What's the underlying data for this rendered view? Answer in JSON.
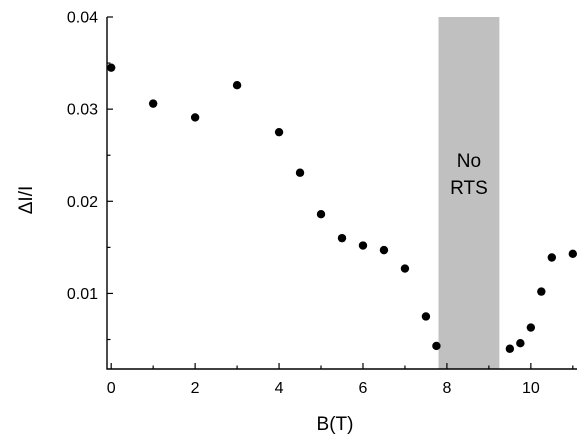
{
  "chart_data": {
    "type": "scatter",
    "title": "",
    "xlabel": "B(T)",
    "ylabel": "ΔI/I",
    "xlim": [
      -0.1,
      11.1
    ],
    "ylim": [
      0.0018,
      0.04
    ],
    "x_ticks": [
      0,
      2,
      4,
      6,
      8,
      10
    ],
    "x_tick_labels": [
      "0",
      "2",
      "4",
      "6",
      "8",
      "10"
    ],
    "x_minor_ticks": [
      1,
      3,
      5,
      7,
      9,
      11
    ],
    "y_ticks": [
      0.01,
      0.02,
      0.03,
      0.04
    ],
    "y_tick_labels": [
      "0.01",
      "0.02",
      "0.03",
      "0.04"
    ],
    "y_minor_ticks": [
      0.005,
      0.015,
      0.025,
      0.035
    ],
    "grid": false,
    "marker_color": "#000000",
    "series": [
      {
        "x": [
          0,
          1,
          2,
          3,
          4,
          4.5,
          5,
          5.5,
          6,
          6.5,
          7,
          7.5,
          7.75,
          9.5,
          9.75,
          10,
          10.25,
          10.5,
          11
        ],
        "y": [
          0.0345,
          0.0306,
          0.0291,
          0.0326,
          0.0275,
          0.0231,
          0.0186,
          0.016,
          0.0152,
          0.0147,
          0.0127,
          0.0075,
          0.0043,
          0.004,
          0.0046,
          0.0063,
          0.0102,
          0.0139,
          0.0143
        ]
      }
    ],
    "shaded_region": {
      "x_start": 7.8,
      "x_end": 9.25,
      "color": "#c0c0c0",
      "label_lines": [
        "No",
        "RTS"
      ]
    }
  }
}
